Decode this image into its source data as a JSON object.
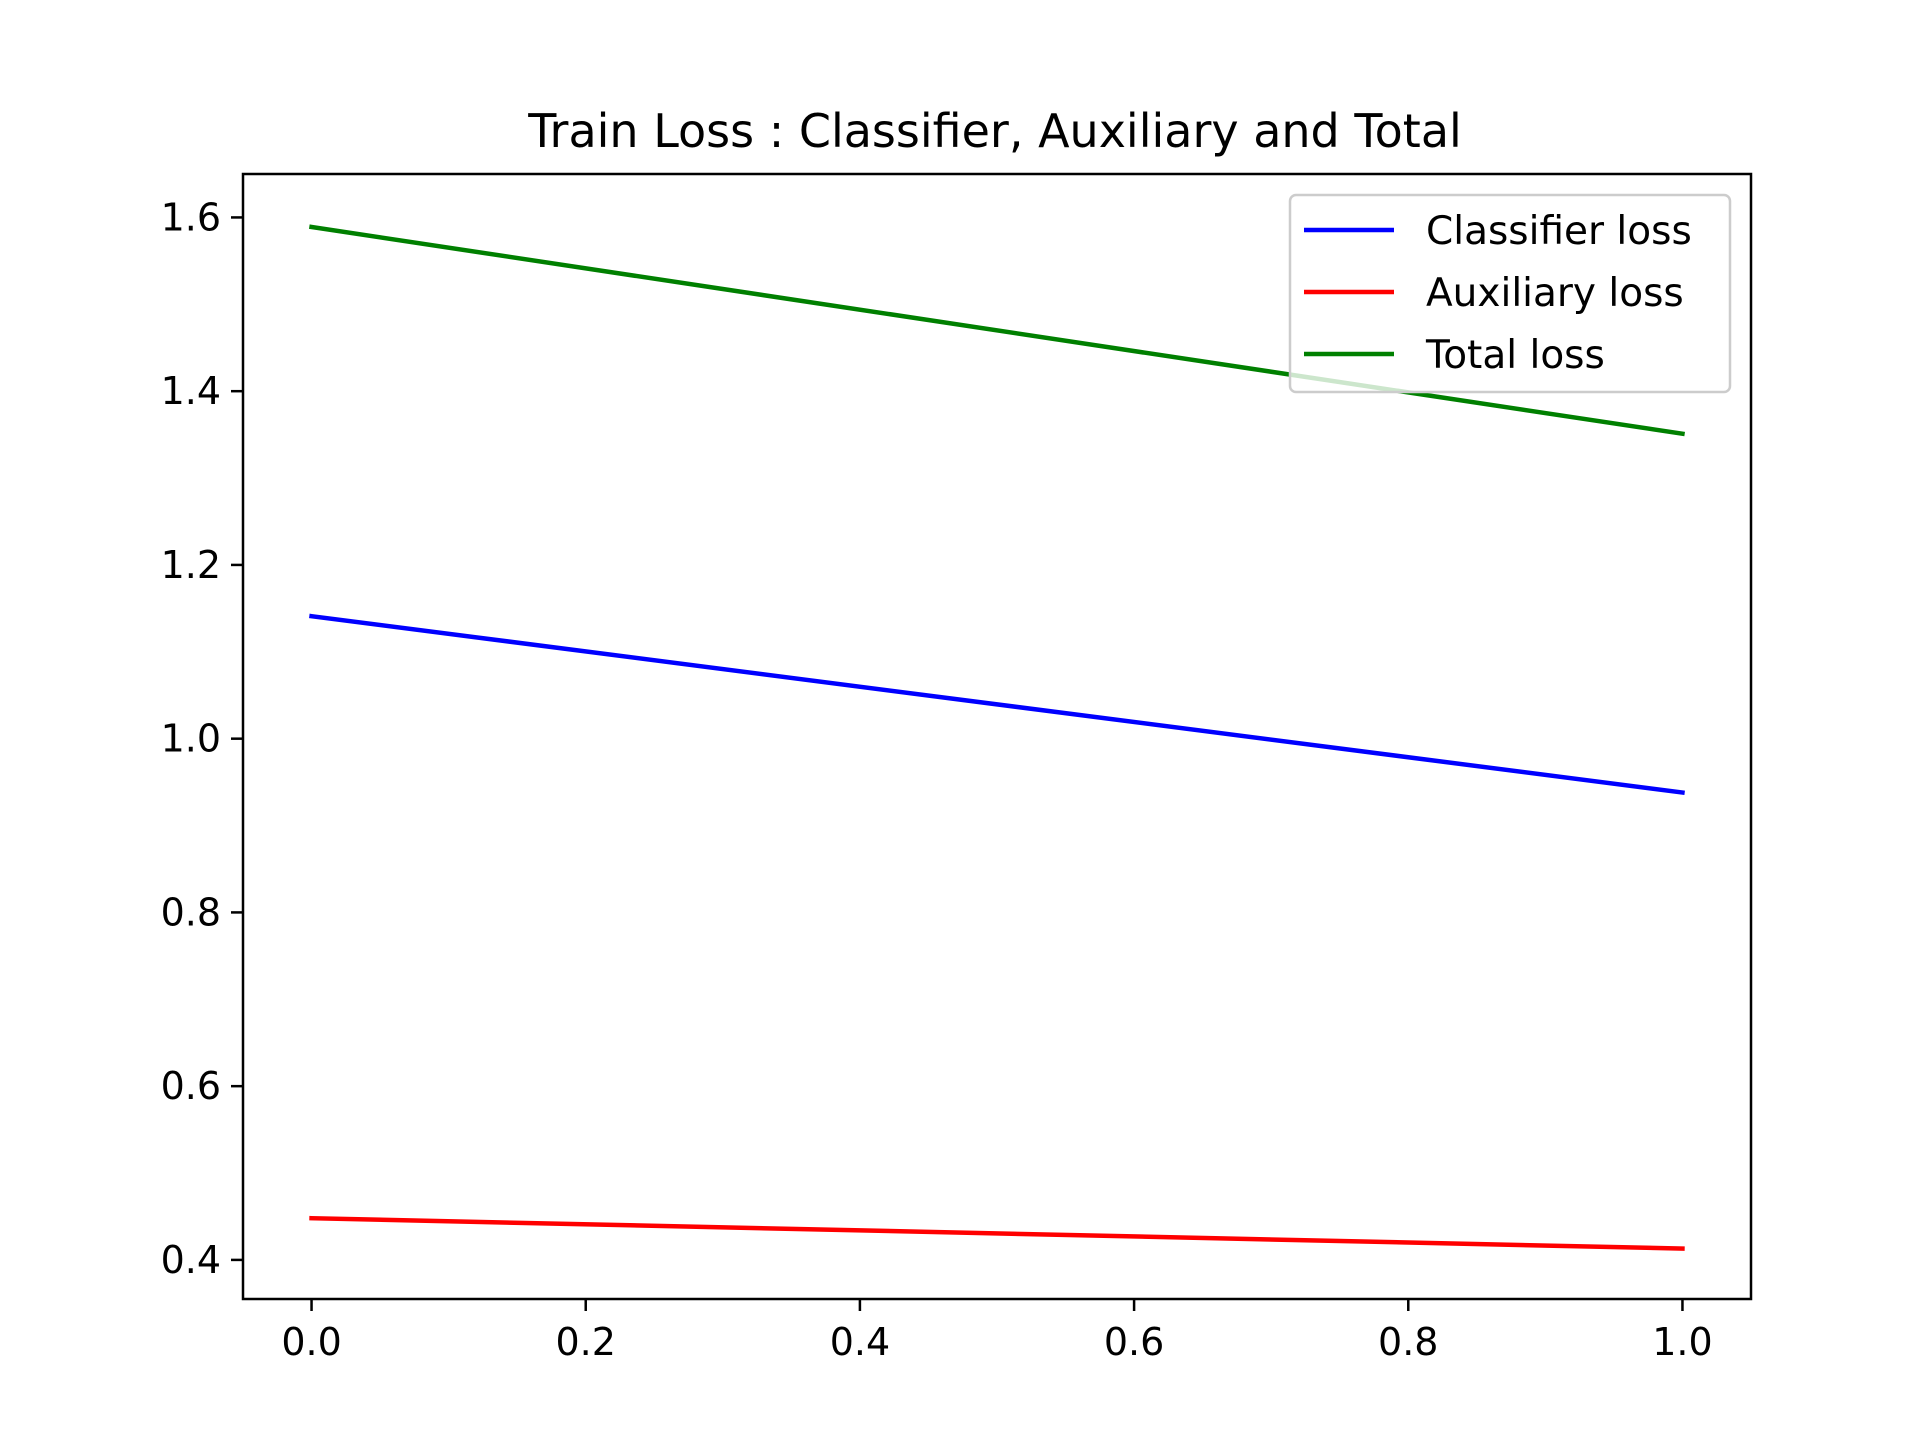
{
  "chart_data": {
    "type": "line",
    "title": "Train Loss : Classifier, Auxiliary and Total",
    "xlabel": "",
    "ylabel": "",
    "x": [
      0.0,
      1.0
    ],
    "xlim": [
      -0.05,
      1.05
    ],
    "ylim": [
      0.355,
      1.65
    ],
    "xticks": [
      0.0,
      0.2,
      0.4,
      0.6,
      0.8,
      1.0
    ],
    "xtick_labels": [
      "0.0",
      "0.2",
      "0.4",
      "0.6",
      "0.8",
      "1.0"
    ],
    "yticks": [
      0.4,
      0.6,
      0.8,
      1.0,
      1.2,
      1.4,
      1.6
    ],
    "ytick_labels": [
      "0.4",
      "0.6",
      "0.8",
      "1.0",
      "1.2",
      "1.4",
      "1.6"
    ],
    "grid": false,
    "legend_position": "upper right",
    "series": [
      {
        "name": "Classifier loss",
        "color": "#0000ff",
        "values": [
          1.141,
          0.938
        ]
      },
      {
        "name": "Auxiliary loss",
        "color": "#ff0000",
        "values": [
          0.448,
          0.413
        ]
      },
      {
        "name": "Total loss",
        "color": "#008000",
        "values": [
          1.589,
          1.351
        ]
      }
    ]
  }
}
